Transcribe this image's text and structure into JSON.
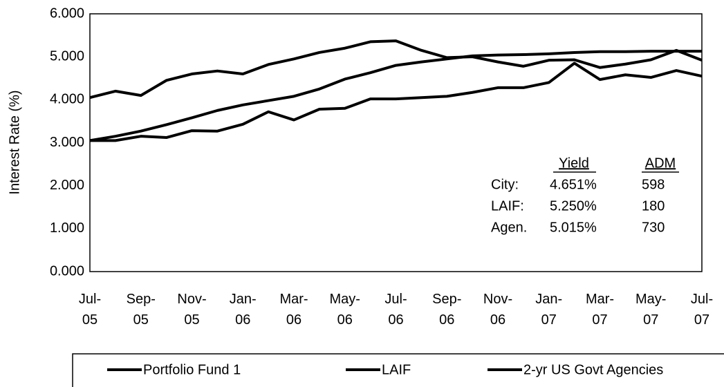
{
  "chart_data": {
    "type": "line",
    "y_label": "Interest Rate (%)",
    "categories": [
      "Jul-\n05",
      null,
      "Sep-\n05",
      null,
      "Nov-\n05",
      null,
      "Jan-\n06",
      null,
      "Mar-\n06",
      null,
      "May-\n06",
      null,
      "Jul-\n06",
      null,
      "Sep-\n06",
      null,
      "Nov-\n06",
      null,
      "Jan-\n07",
      null,
      "Mar-\n07",
      null,
      "May-\n07",
      null,
      "Jul-\n07"
    ],
    "series": [
      {
        "name": "Portfolio Fund 1",
        "color": "#000000",
        "values": [
          3.05,
          3.05,
          3.15,
          3.12,
          3.28,
          3.27,
          3.43,
          3.72,
          3.53,
          3.78,
          3.8,
          4.02,
          4.02,
          4.05,
          4.08,
          4.17,
          4.28,
          4.28,
          4.4,
          4.85,
          4.47,
          4.58,
          4.52,
          4.68,
          4.55
        ]
      },
      {
        "name": "LAIF",
        "color": "#000000",
        "values": [
          3.05,
          3.15,
          3.27,
          3.42,
          3.58,
          3.75,
          3.88,
          3.98,
          4.08,
          4.25,
          4.48,
          4.63,
          4.8,
          4.88,
          4.95,
          5.02,
          5.04,
          5.05,
          5.07,
          5.1,
          5.12,
          5.12,
          5.13,
          5.13,
          5.13
        ]
      },
      {
        "name": "2-yr US Govt Agencies",
        "color": "#000000",
        "values": [
          4.05,
          4.2,
          4.1,
          4.45,
          4.6,
          4.67,
          4.6,
          4.82,
          4.95,
          5.1,
          5.2,
          5.35,
          5.37,
          5.15,
          4.98,
          5.0,
          4.88,
          4.78,
          4.92,
          4.93,
          4.75,
          4.83,
          4.93,
          5.15,
          4.92
        ]
      }
    ],
    "ylim": [
      0,
      6
    ],
    "yticks": [
      {
        "value": 0,
        "label": "0.000"
      },
      {
        "value": 1,
        "label": "1.000"
      },
      {
        "value": 2,
        "label": "2.000"
      },
      {
        "value": 3,
        "label": "3.000"
      },
      {
        "value": 4,
        "label": "4.000"
      },
      {
        "value": 5,
        "label": "5.000"
      },
      {
        "value": 6,
        "label": "6.000"
      }
    ],
    "grid": false,
    "legend": "bottom",
    "annotation": {
      "columns": [
        "Yield",
        "ADM"
      ],
      "rows": [
        [
          "City:",
          "4.651%",
          "598"
        ],
        [
          "LAIF:",
          "5.250%",
          "180"
        ],
        [
          "Agen.",
          "5.015%",
          "730"
        ]
      ]
    }
  }
}
